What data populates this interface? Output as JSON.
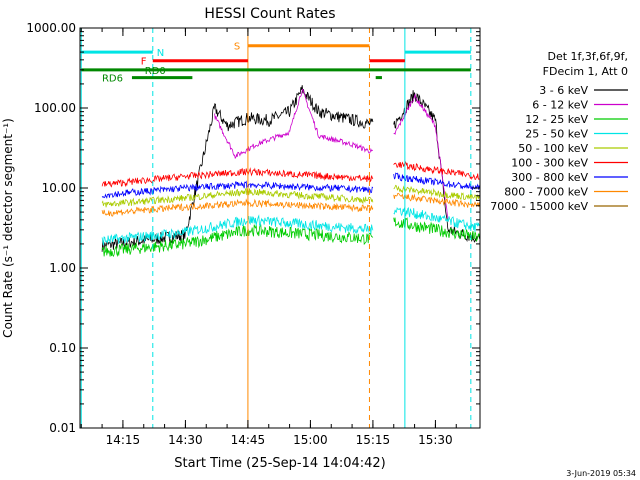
{
  "chart_data": {
    "type": "line",
    "title": "HESSI Count Rates",
    "xlabel": "Start Time (25-Sep-14 14:04:42)",
    "ylabel": "Count Rate (s⁻¹ detector segment⁻¹)",
    "y_scale": "log",
    "xlim": [
      "14:04:42",
      "14:40:00"
    ],
    "ylim": [
      0.01,
      1000
    ],
    "x_ticks": [
      "14:15",
      "14:30",
      "14:45",
      "15:00",
      "15:15",
      "15:30"
    ],
    "y_ticks": [
      "0.01",
      "0.10",
      "1.00",
      "10.00",
      "100.00",
      "1000.00"
    ],
    "legend_header": [
      "Det 1f,3f,6f,9f,",
      "FDecim 1, Att 0"
    ],
    "legend_placement": "right",
    "series": [
      {
        "name": "3 - 6 keV",
        "color": "#000000",
        "values_before": [
          [
            14.1,
            1.9
          ],
          [
            14.2,
            2.2
          ],
          [
            14.3,
            2.6
          ],
          [
            14.37,
            100
          ],
          [
            14.4,
            60
          ],
          [
            14.45,
            75
          ],
          [
            14.5,
            70
          ],
          [
            14.55,
            90
          ],
          [
            14.58,
            170
          ],
          [
            14.62,
            90
          ],
          [
            14.68,
            75
          ],
          [
            14.75,
            62
          ]
        ],
        "values_after": [
          [
            15.2,
            60
          ],
          [
            15.25,
            150
          ],
          [
            15.3,
            70
          ],
          [
            15.33,
            3
          ],
          [
            15.45,
            2.0
          ],
          [
            15.6,
            1.7
          ],
          [
            15.75,
            1.8
          ]
        ]
      },
      {
        "name": "6 - 12 keV",
        "color": "#cc00cc",
        "values_before": [
          [
            14.37,
            80
          ],
          [
            14.42,
            25
          ],
          [
            14.47,
            35
          ],
          [
            14.55,
            50
          ],
          [
            14.58,
            170
          ],
          [
            14.62,
            45
          ],
          [
            14.7,
            35
          ],
          [
            14.75,
            28
          ]
        ],
        "values_after": [
          [
            15.2,
            45
          ],
          [
            15.25,
            140
          ],
          [
            15.3,
            60
          ],
          [
            15.33,
            4
          ]
        ]
      },
      {
        "name": "12 - 25 keV",
        "color": "#00cc00",
        "values_before": [
          [
            14.1,
            1.6
          ],
          [
            14.3,
            2.0
          ],
          [
            14.45,
            3.0
          ],
          [
            14.75,
            2.3
          ]
        ],
        "values_after": [
          [
            15.2,
            3.8
          ],
          [
            15.4,
            2.4
          ],
          [
            15.75,
            1.8
          ]
        ]
      },
      {
        "name": "25 - 50 keV",
        "color": "#00e5e5",
        "values_before": [
          [
            14.1,
            2.2
          ],
          [
            14.3,
            2.8
          ],
          [
            14.45,
            4.0
          ],
          [
            14.75,
            3.0
          ]
        ],
        "values_after": [
          [
            15.2,
            5.5
          ],
          [
            15.4,
            3.2
          ],
          [
            15.75,
            2.6
          ]
        ]
      },
      {
        "name": "50 - 100 keV",
        "color": "#aacc00",
        "values_before": [
          [
            14.1,
            6.2
          ],
          [
            14.3,
            7.5
          ],
          [
            14.45,
            9.0
          ],
          [
            14.75,
            7.0
          ]
        ],
        "values_after": [
          [
            15.2,
            10
          ],
          [
            15.4,
            7.5
          ],
          [
            15.75,
            6.5
          ]
        ]
      },
      {
        "name": "100 - 300 keV",
        "color": "#ff0000",
        "values_before": [
          [
            14.1,
            11
          ],
          [
            14.3,
            14
          ],
          [
            14.45,
            16
          ],
          [
            14.75,
            13
          ]
        ],
        "values_after": [
          [
            15.2,
            20
          ],
          [
            15.4,
            14
          ],
          [
            15.75,
            12
          ]
        ]
      },
      {
        "name": "300 - 800 keV",
        "color": "#0000ff",
        "values_before": [
          [
            14.1,
            8.2
          ],
          [
            14.3,
            10
          ],
          [
            14.45,
            11
          ],
          [
            14.75,
            9.5
          ]
        ],
        "values_after": [
          [
            15.2,
            14
          ],
          [
            15.4,
            10
          ],
          [
            15.75,
            8.5
          ]
        ]
      },
      {
        "name": "800 - 7000 keV",
        "color": "#ff8800",
        "values_before": [
          [
            14.1,
            4.8
          ],
          [
            14.3,
            5.8
          ],
          [
            14.45,
            6.5
          ],
          [
            14.75,
            5.5
          ]
        ],
        "values_after": [
          [
            15.2,
            8
          ],
          [
            15.4,
            6
          ],
          [
            15.75,
            5
          ]
        ]
      },
      {
        "name": "7000 - 15000 keV",
        "color": "#996600",
        "values_before": [],
        "values_after": []
      }
    ],
    "flags": [
      {
        "label": "N",
        "color": "#00e5e5",
        "y": 500
      },
      {
        "label": "S",
        "color": "#ff8800",
        "y": 600
      },
      {
        "label": "F",
        "color": "#ff0000",
        "y": 390
      },
      {
        "label": "RD0",
        "color": "#008800",
        "y": 300
      },
      {
        "label": "RD6",
        "color": "#008800",
        "y": 240
      }
    ],
    "timestamp": "3-Jun-2019 05:34"
  }
}
